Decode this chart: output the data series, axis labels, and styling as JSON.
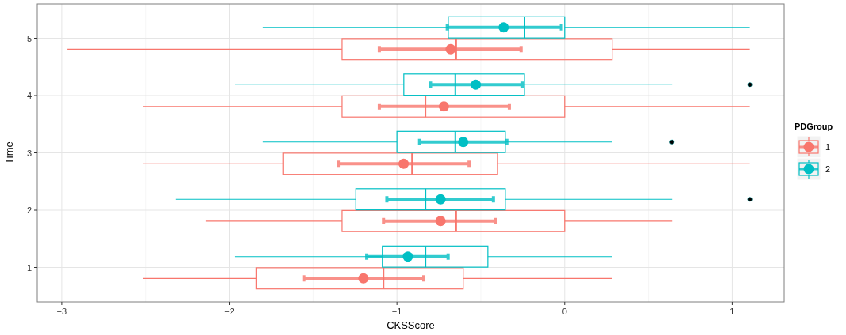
{
  "chart_data": {
    "type": "box",
    "orientation": "horizontal",
    "xlabel": "CKSScore",
    "ylabel": "Time",
    "legend_title": "PDGroup",
    "legend": "right",
    "grid": true,
    "marker": "circle",
    "categories": [
      "5",
      "4",
      "3",
      "2",
      "1"
    ],
    "xlim": [
      -3.146,
      1.31
    ],
    "xticks": [
      -3,
      -2,
      -1,
      0,
      1
    ],
    "series": [
      {
        "name": "1",
        "color": "#f8766d",
        "boxes": [
          {
            "low": -2.966,
            "q1": -1.327,
            "median": -0.647,
            "q3": 0.283,
            "high": 1.105
          },
          {
            "low": -2.513,
            "q1": -1.327,
            "median": -0.83,
            "q3": 0,
            "high": 1.105
          },
          {
            "low": -2.513,
            "q1": -1.68,
            "median": -0.91,
            "q3": -0.4,
            "high": 1.105
          },
          {
            "low": -2.14,
            "q1": -1.327,
            "median": -0.647,
            "q3": 0,
            "high": 0.64
          },
          {
            "low": -2.513,
            "q1": -1.84,
            "median": -1.08,
            "q3": -0.605,
            "high": 0.283
          }
        ]
      },
      {
        "name": "2",
        "color": "#00bfc4",
        "boxes": [
          {
            "low": -1.8,
            "q1": -0.694,
            "median": -0.24,
            "q3": 0,
            "high": 1.105
          },
          {
            "low": -1.965,
            "q1": -0.959,
            "median": -0.652,
            "q3": -0.24,
            "high": 0.64,
            "outliers": [
              1.105
            ]
          },
          {
            "low": -1.8,
            "q1": -1.0,
            "median": -0.652,
            "q3": -0.354,
            "high": 0.283,
            "outliers": [
              0.64
            ]
          },
          {
            "low": -2.32,
            "q1": -1.245,
            "median": -0.83,
            "q3": -0.354,
            "high": 0.64,
            "outliers": [
              1.105
            ]
          },
          {
            "low": -1.965,
            "q1": -1.087,
            "median": -0.83,
            "q3": -0.458,
            "high": 0.283
          }
        ]
      },
      {
        "type": "scatter",
        "color": "#f8766d",
        "values": [
          -0.68,
          -0.72,
          -0.96,
          -0.74,
          -1.2
        ],
        "errors": [
          [
            -1.105,
            -0.26
          ],
          [
            -1.105,
            -0.33
          ],
          [
            -1.35,
            -0.57
          ],
          [
            -1.08,
            -0.41
          ],
          [
            -1.555,
            -0.84
          ]
        ]
      },
      {
        "type": "scatter",
        "color": "#00bfc4",
        "values": [
          -0.364,
          -0.53,
          -0.605,
          -0.74,
          -0.935
        ],
        "errors": [
          [
            -0.7,
            -0.02
          ],
          [
            -0.8,
            -0.25
          ],
          [
            -0.865,
            -0.345
          ],
          [
            -1.06,
            -0.425
          ],
          [
            -1.18,
            -0.695
          ]
        ]
      }
    ]
  }
}
